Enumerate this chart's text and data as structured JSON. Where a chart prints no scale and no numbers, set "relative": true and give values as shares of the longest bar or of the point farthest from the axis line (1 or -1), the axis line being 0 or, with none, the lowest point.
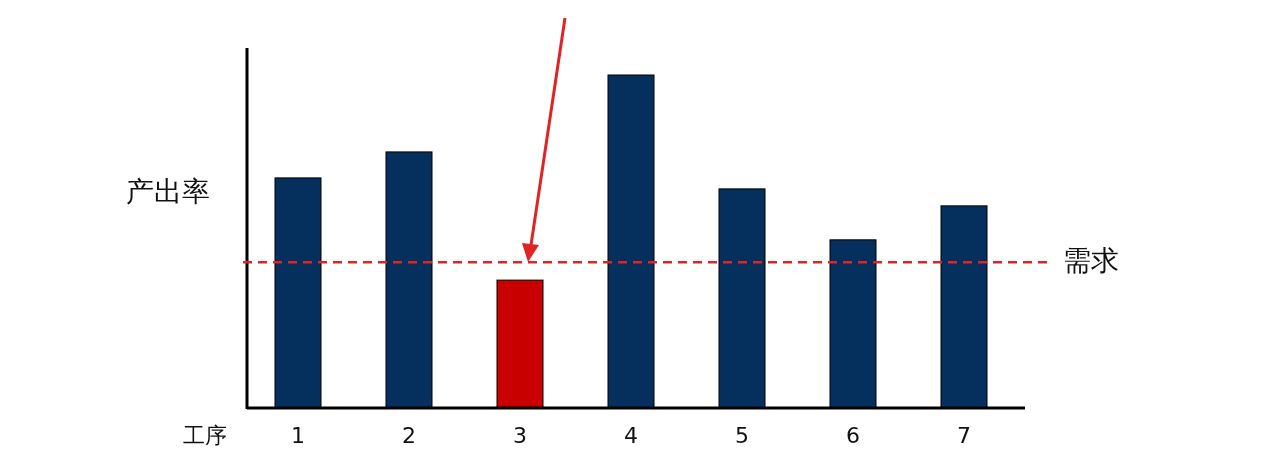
{
  "chart_data": {
    "type": "bar",
    "relative": true,
    "xlabel": "工序",
    "ylabel": "产出率",
    "categories": [
      "1",
      "2",
      "3",
      "4",
      "5",
      "6",
      "7"
    ],
    "values": [
      0.691,
      0.769,
      0.384,
      1,
      0.658,
      0.505,
      0.607
    ],
    "colors": [
      "#05305e",
      "#05305e",
      "#c80000",
      "#05305e",
      "#05305e",
      "#05305e",
      "#05305e"
    ],
    "ref_lines": [
      {
        "axis": "y",
        "value": 0.438,
        "label": "需求",
        "color": "#e02424",
        "line_style": "dashed"
      }
    ]
  }
}
